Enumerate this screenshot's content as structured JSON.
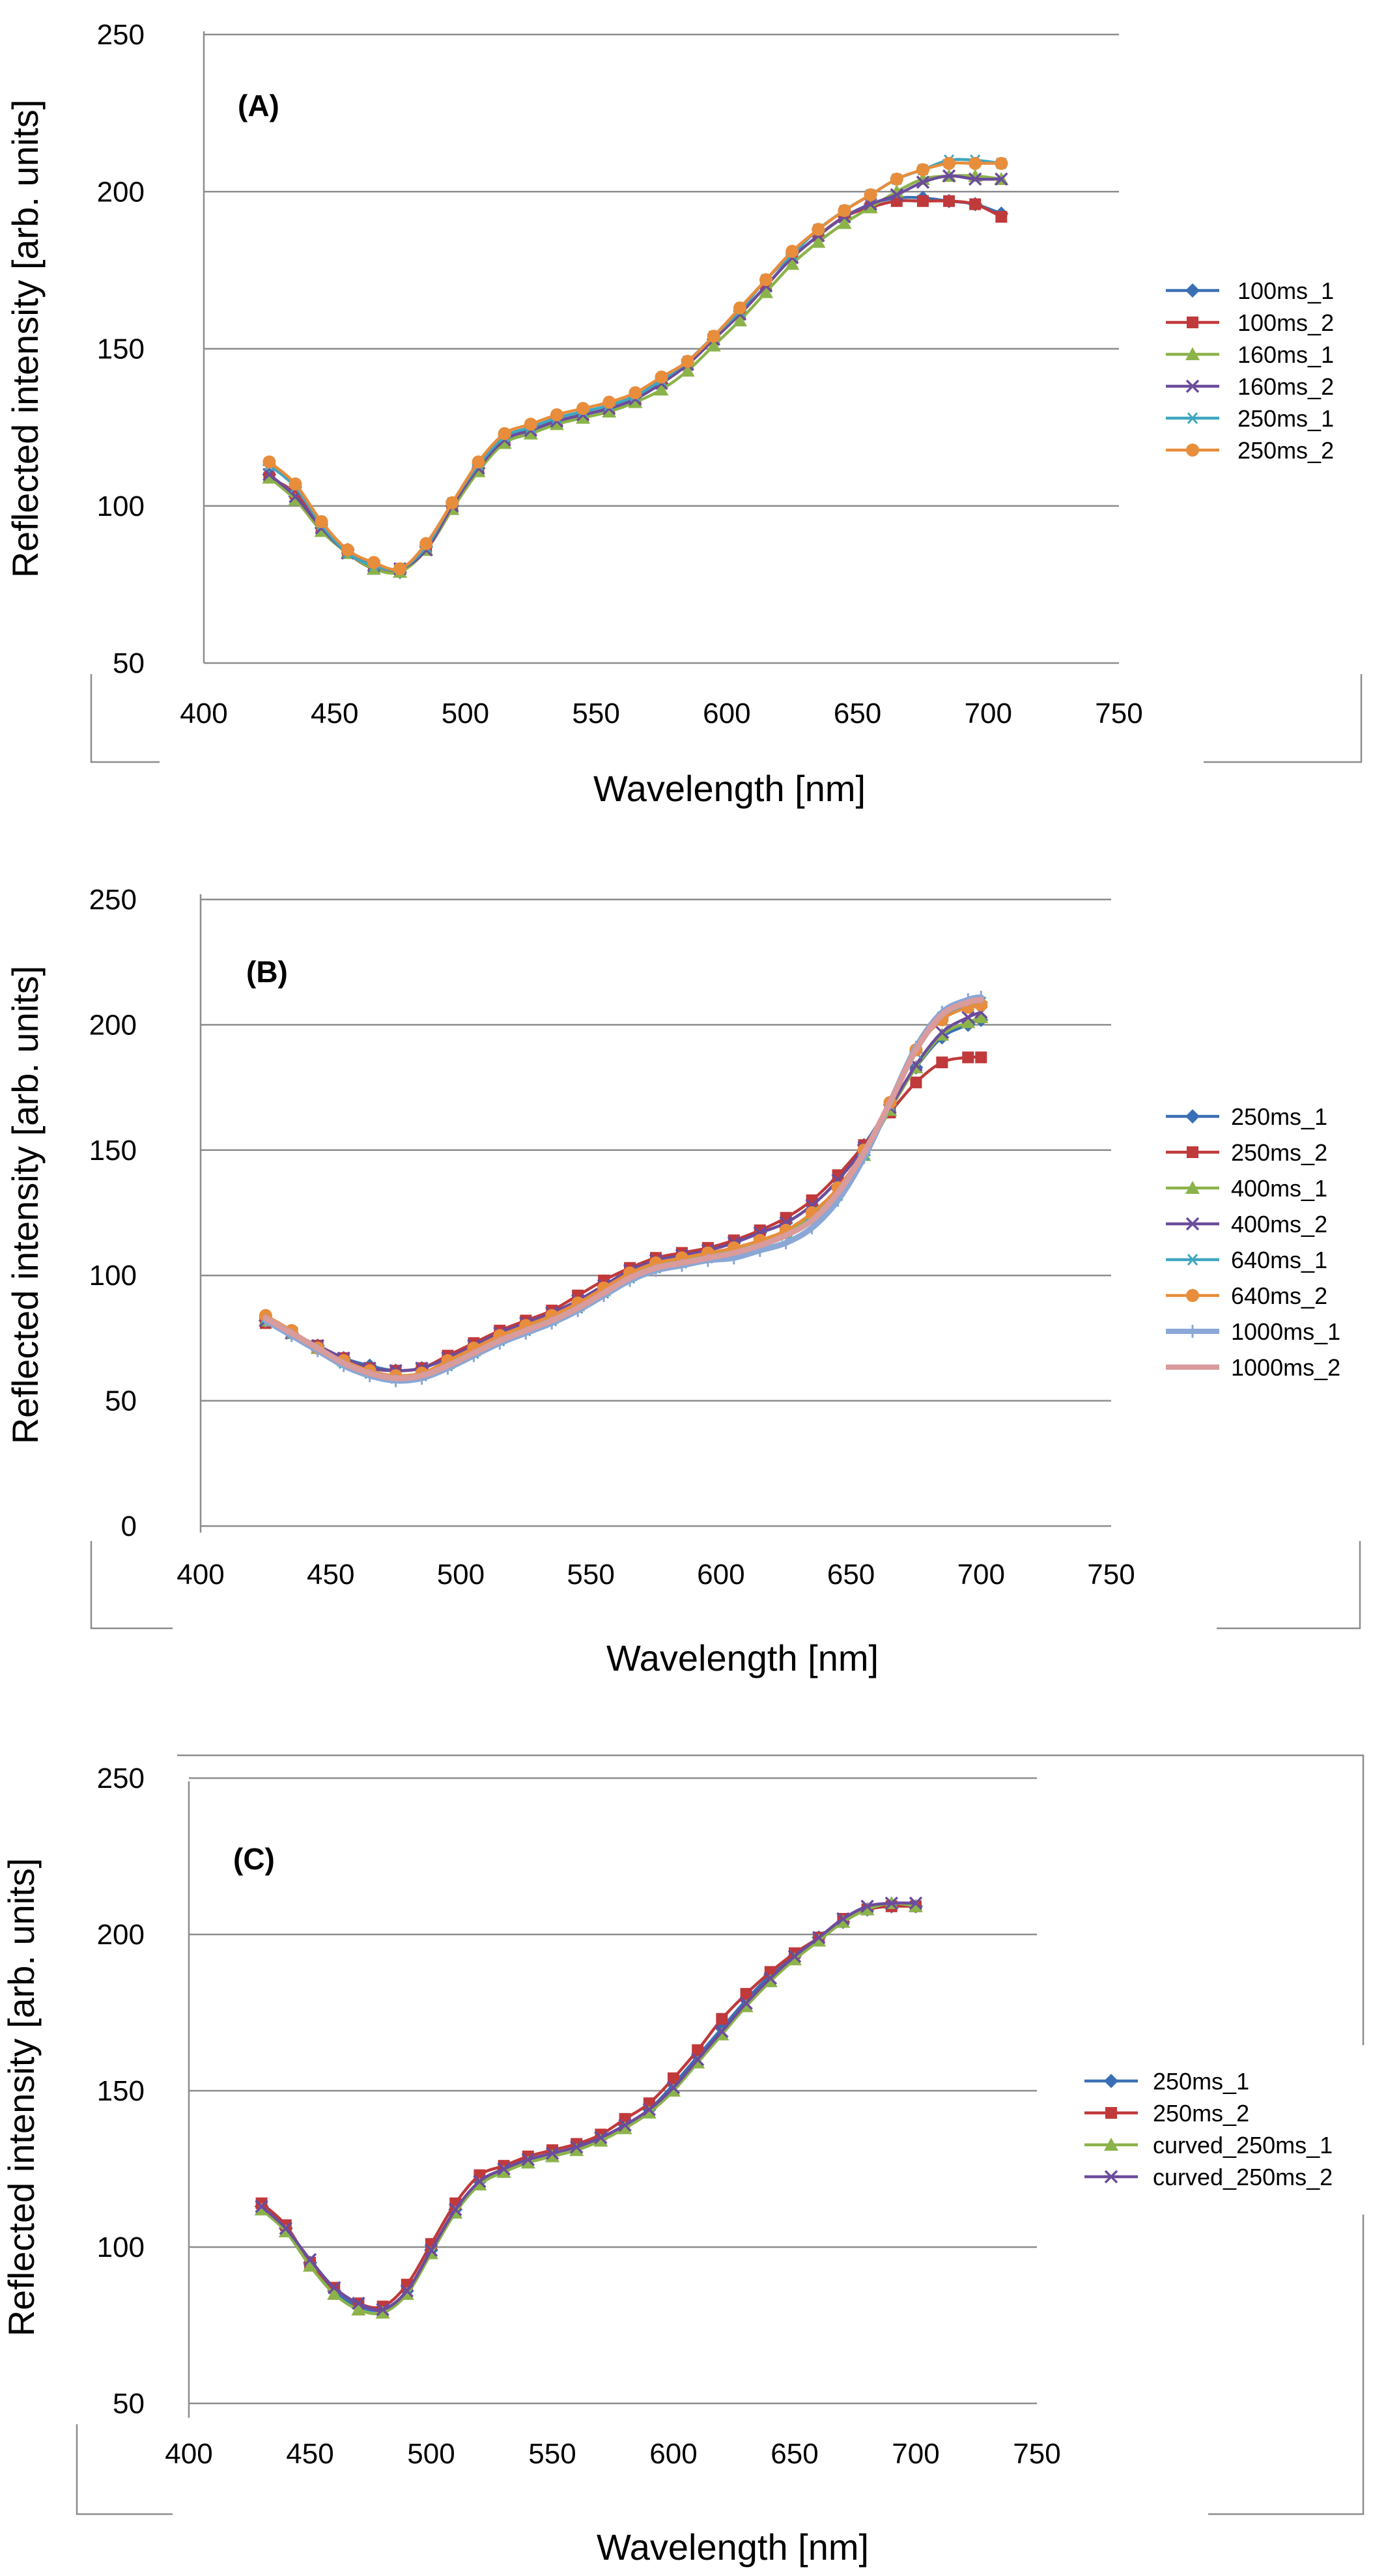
{
  "colors": {
    "blue": "#3a6fb5",
    "red": "#c0393b",
    "green": "#8bb34a",
    "purple": "#6c4c9c",
    "teal": "#3fa6c0",
    "orange": "#e88d3c",
    "lightblue": "#8aa7d6",
    "pink": "#d99b9b",
    "grid": "#8c8c8c"
  },
  "chart_data": [
    {
      "type": "line",
      "panel_label": "(A)",
      "xlabel": "Wavelength [nm]",
      "ylabel": "Reflected intensity [arb. units]",
      "xlim": [
        400,
        750
      ],
      "ylim": [
        50,
        250
      ],
      "xticks": [
        400,
        450,
        500,
        550,
        600,
        650,
        700,
        750
      ],
      "yticks": [
        50,
        100,
        150,
        200,
        250
      ],
      "grid": true,
      "legend_position": "right",
      "x": [
        425,
        435,
        445,
        455,
        465,
        475,
        485,
        495,
        505,
        515,
        525,
        535,
        545,
        555,
        565,
        575,
        585,
        595,
        605,
        615,
        625,
        635,
        645,
        655,
        665,
        675,
        685,
        695,
        705
      ],
      "series": [
        {
          "name": "100ms_1",
          "color": "blue",
          "marker": "diamond",
          "values": [
            110,
            103,
            93,
            86,
            81,
            79,
            87,
            100,
            112,
            121,
            125,
            127,
            129,
            131,
            134,
            139,
            145,
            153,
            161,
            170,
            179,
            186,
            192,
            196,
            198,
            198,
            197,
            196,
            193
          ]
        },
        {
          "name": "100ms_2",
          "color": "red",
          "marker": "square",
          "values": [
            109,
            104,
            93,
            85,
            80,
            80,
            86,
            99,
            112,
            121,
            124,
            127,
            129,
            131,
            134,
            139,
            145,
            153,
            161,
            170,
            179,
            186,
            192,
            195,
            197,
            197,
            197,
            196,
            192
          ]
        },
        {
          "name": "160ms_1",
          "color": "green",
          "marker": "triangle",
          "values": [
            109,
            102,
            92,
            85,
            80,
            79,
            86,
            99,
            111,
            120,
            123,
            126,
            128,
            130,
            133,
            137,
            143,
            151,
            159,
            168,
            177,
            184,
            190,
            195,
            200,
            204,
            205,
            205,
            204
          ]
        },
        {
          "name": "160ms_2",
          "color": "purple",
          "marker": "x",
          "values": [
            110,
            103,
            93,
            85,
            81,
            80,
            86,
            100,
            112,
            121,
            124,
            127,
            129,
            131,
            134,
            139,
            145,
            153,
            161,
            170,
            179,
            186,
            192,
            196,
            199,
            203,
            205,
            204,
            204
          ]
        },
        {
          "name": "250ms_1",
          "color": "teal",
          "marker": "star",
          "values": [
            113,
            106,
            94,
            85,
            81,
            80,
            87,
            101,
            113,
            122,
            125,
            128,
            130,
            132,
            135,
            140,
            146,
            154,
            162,
            172,
            180,
            188,
            194,
            199,
            204,
            207,
            210,
            210,
            209
          ]
        },
        {
          "name": "250ms_2",
          "color": "orange",
          "marker": "circle",
          "values": [
            114,
            107,
            95,
            86,
            82,
            80,
            88,
            101,
            114,
            123,
            126,
            129,
            131,
            133,
            136,
            141,
            146,
            154,
            163,
            172,
            181,
            188,
            194,
            199,
            204,
            207,
            209,
            209,
            209
          ]
        }
      ]
    },
    {
      "type": "line",
      "panel_label": "(B)",
      "xlabel": "Wavelength [nm]",
      "ylabel": "Reflected intensity [arb. units]",
      "xlim": [
        400,
        750
      ],
      "ylim": [
        0,
        250
      ],
      "xticks": [
        400,
        450,
        500,
        550,
        600,
        650,
        700,
        750
      ],
      "yticks": [
        0,
        50,
        100,
        150,
        200,
        250
      ],
      "grid": true,
      "legend_position": "right",
      "x": [
        425,
        435,
        445,
        455,
        465,
        475,
        485,
        495,
        505,
        515,
        525,
        535,
        545,
        555,
        565,
        575,
        585,
        595,
        605,
        615,
        625,
        635,
        645,
        655,
        665,
        675,
        685,
        695,
        700
      ],
      "series": [
        {
          "name": "250ms_1",
          "color": "blue",
          "marker": "diamond",
          "values": [
            82,
            77,
            72,
            67,
            64,
            62,
            63,
            67,
            72,
            77,
            81,
            85,
            90,
            96,
            102,
            106,
            108,
            110,
            113,
            117,
            121,
            128,
            138,
            152,
            168,
            183,
            195,
            200,
            202
          ]
        },
        {
          "name": "250ms_2",
          "color": "red",
          "marker": "square",
          "values": [
            81,
            77,
            72,
            67,
            63,
            62,
            63,
            68,
            73,
            78,
            82,
            86,
            92,
            98,
            103,
            107,
            109,
            111,
            114,
            118,
            123,
            130,
            140,
            152,
            165,
            177,
            185,
            187,
            187
          ]
        },
        {
          "name": "400ms_1",
          "color": "green",
          "marker": "triangle",
          "values": [
            82,
            77,
            71,
            66,
            62,
            60,
            61,
            65,
            70,
            75,
            79,
            83,
            88,
            94,
            100,
            104,
            106,
            108,
            110,
            113,
            117,
            124,
            134,
            148,
            166,
            183,
            196,
            201,
            203
          ]
        },
        {
          "name": "400ms_2",
          "color": "purple",
          "marker": "x",
          "values": [
            82,
            77,
            72,
            67,
            63,
            62,
            63,
            67,
            72,
            77,
            81,
            85,
            90,
            96,
            102,
            106,
            108,
            110,
            113,
            117,
            121,
            128,
            138,
            151,
            167,
            184,
            197,
            203,
            205
          ]
        },
        {
          "name": "640ms_1",
          "color": "teal",
          "marker": "star",
          "values": [
            83,
            77,
            71,
            65,
            61,
            59,
            60,
            64,
            69,
            74,
            78,
            82,
            87,
            93,
            99,
            103,
            105,
            107,
            109,
            112,
            116,
            122,
            132,
            148,
            168,
            189,
            203,
            208,
            209
          ]
        },
        {
          "name": "640ms_2",
          "color": "orange",
          "marker": "circle",
          "values": [
            84,
            78,
            71,
            66,
            62,
            60,
            61,
            66,
            71,
            76,
            80,
            84,
            89,
            95,
            101,
            105,
            107,
            109,
            111,
            114,
            118,
            125,
            135,
            150,
            169,
            190,
            202,
            207,
            208
          ]
        },
        {
          "name": "1000ms_1",
          "color": "lightblue",
          "marker": "plus",
          "values": [
            82,
            76,
            70,
            64,
            60,
            58,
            59,
            63,
            68,
            73,
            77,
            81,
            86,
            92,
            98,
            102,
            104,
            106,
            107,
            110,
            113,
            119,
            130,
            147,
            169,
            191,
            205,
            210,
            211
          ]
        },
        {
          "name": "1000ms_2",
          "color": "pink",
          "marker": "none",
          "values": [
            83,
            77,
            71,
            65,
            61,
            59,
            60,
            64,
            69,
            74,
            78,
            82,
            87,
            93,
            99,
            103,
            105,
            107,
            109,
            112,
            116,
            122,
            133,
            149,
            169,
            190,
            204,
            209,
            210
          ]
        }
      ]
    },
    {
      "type": "line",
      "panel_label": "(C)",
      "xlabel": "Wavelength [nm]",
      "ylabel": "Reflected intensity [arb. units]",
      "xlim": [
        400,
        750
      ],
      "ylim": [
        50,
        250
      ],
      "xticks": [
        400,
        450,
        500,
        550,
        600,
        650,
        700,
        750
      ],
      "yticks": [
        50,
        100,
        150,
        200,
        250
      ],
      "grid": true,
      "legend_position": "right",
      "x": [
        430,
        440,
        450,
        460,
        470,
        480,
        490,
        500,
        510,
        520,
        530,
        540,
        550,
        560,
        570,
        580,
        590,
        600,
        610,
        620,
        630,
        640,
        650,
        660,
        670,
        680,
        690,
        700
      ],
      "series": [
        {
          "name": "250ms_1",
          "color": "blue",
          "marker": "diamond",
          "values": [
            113,
            106,
            95,
            86,
            81,
            80,
            86,
            99,
            112,
            121,
            125,
            128,
            130,
            132,
            135,
            139,
            144,
            152,
            161,
            170,
            179,
            187,
            193,
            199,
            204,
            208,
            209,
            209
          ]
        },
        {
          "name": "250ms_2",
          "color": "red",
          "marker": "square",
          "values": [
            114,
            107,
            95,
            87,
            82,
            81,
            88,
            101,
            114,
            123,
            126,
            129,
            131,
            133,
            136,
            141,
            146,
            154,
            163,
            173,
            181,
            188,
            194,
            199,
            205,
            208,
            209,
            209
          ]
        },
        {
          "name": "curved_250ms_1",
          "color": "green",
          "marker": "triangle",
          "values": [
            112,
            105,
            94,
            85,
            80,
            79,
            85,
            98,
            111,
            120,
            124,
            127,
            129,
            131,
            134,
            138,
            143,
            150,
            159,
            168,
            177,
            185,
            192,
            198,
            204,
            208,
            210,
            209
          ]
        },
        {
          "name": "curved_250ms_2",
          "color": "purple",
          "marker": "x",
          "values": [
            113,
            106,
            96,
            87,
            82,
            80,
            86,
            99,
            112,
            121,
            125,
            128,
            130,
            132,
            135,
            139,
            144,
            151,
            160,
            169,
            178,
            186,
            193,
            199,
            205,
            209,
            210,
            210
          ]
        }
      ]
    }
  ]
}
